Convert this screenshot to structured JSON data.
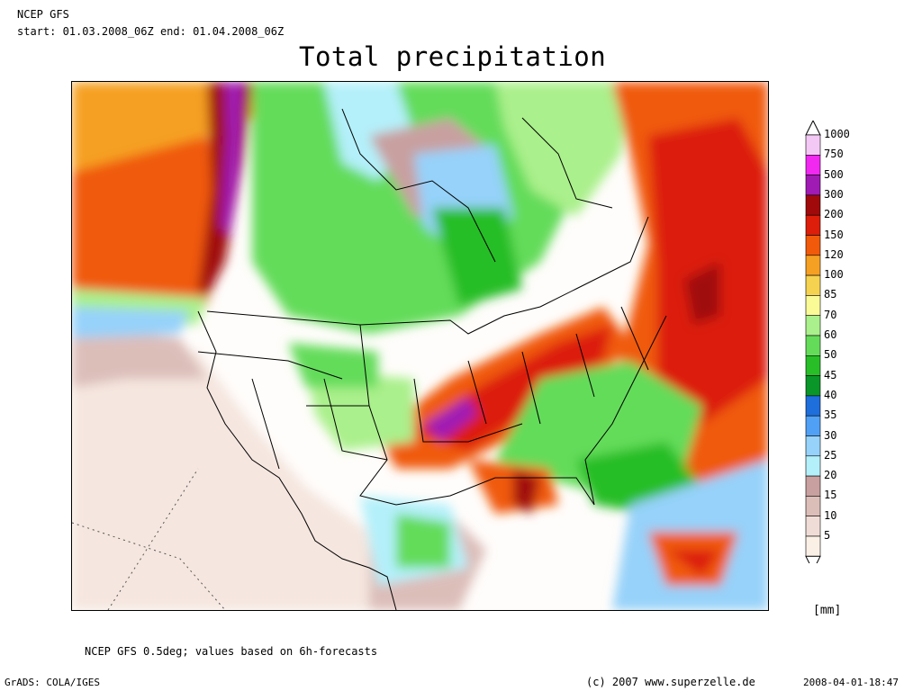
{
  "header": {
    "model": "NCEP GFS",
    "period": "start: 01.03.2008_06Z end: 01.04.2008_06Z",
    "title": "Total precipitation"
  },
  "legend": {
    "units": "[mm]",
    "levels": [
      {
        "label": "1000",
        "color": "#f4c8f4"
      },
      {
        "label": "750",
        "color": "#f028f0"
      },
      {
        "label": "500",
        "color": "#a01ab4"
      },
      {
        "label": "300",
        "color": "#a00a0a"
      },
      {
        "label": "200",
        "color": "#dc1e0a"
      },
      {
        "label": "150",
        "color": "#f05a0a"
      },
      {
        "label": "120",
        "color": "#f5a023"
      },
      {
        "label": "100",
        "color": "#f5d250"
      },
      {
        "label": "85",
        "color": "#fafa96"
      },
      {
        "label": "70",
        "color": "#aaf08c"
      },
      {
        "label": "60",
        "color": "#64dc5a"
      },
      {
        "label": "50",
        "color": "#28be28"
      },
      {
        "label": "45",
        "color": "#0a9628"
      },
      {
        "label": "40",
        "color": "#1e6edc"
      },
      {
        "label": "35",
        "color": "#50a0f5"
      },
      {
        "label": "30",
        "color": "#96d2fa"
      },
      {
        "label": "25",
        "color": "#b4f0fa"
      },
      {
        "label": "20",
        "color": "#c8a0a0"
      },
      {
        "label": "15",
        "color": "#dcbeb9"
      },
      {
        "label": "10",
        "color": "#f0dcd7"
      },
      {
        "label": "5",
        "color": "#faf0e6"
      }
    ]
  },
  "footer": {
    "source_note": "NCEP GFS 0.5deg; values based on 6h-forecasts",
    "software": "GrADS: COLA/IGES",
    "copyright": "(c) 2007 www.superzelle.de",
    "timestamp": "2008-04-01-18:47"
  }
}
